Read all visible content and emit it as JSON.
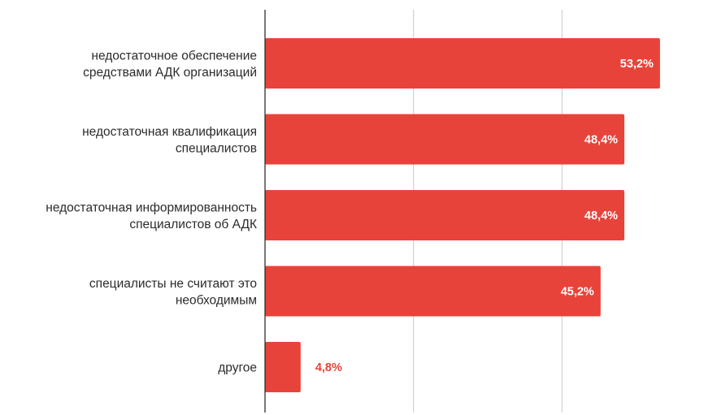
{
  "chart_data": {
    "type": "bar",
    "orientation": "horizontal",
    "categories": [
      [
        "недостаточное обеспечение",
        "средствами АДК организаций"
      ],
      [
        "недостаточная квалификация",
        "специалистов"
      ],
      [
        "недостаточная информированность",
        "специалистов об АДК"
      ],
      [
        "специалисты не считают это",
        "необходимым"
      ],
      [
        "другое"
      ]
    ],
    "values": [
      53.2,
      48.4,
      48.4,
      45.2,
      4.8
    ],
    "value_labels": [
      "53,2%",
      "48,4%",
      "48,4%",
      "45,2%",
      "4,8%"
    ],
    "xlim": [
      0,
      60
    ],
    "gridlines_x": [
      0,
      20,
      40
    ],
    "grid": true,
    "legend": "none",
    "bar_color": "#e8433a",
    "label_inside_color": "#ffffff",
    "label_outside_color": "#e8433a"
  }
}
